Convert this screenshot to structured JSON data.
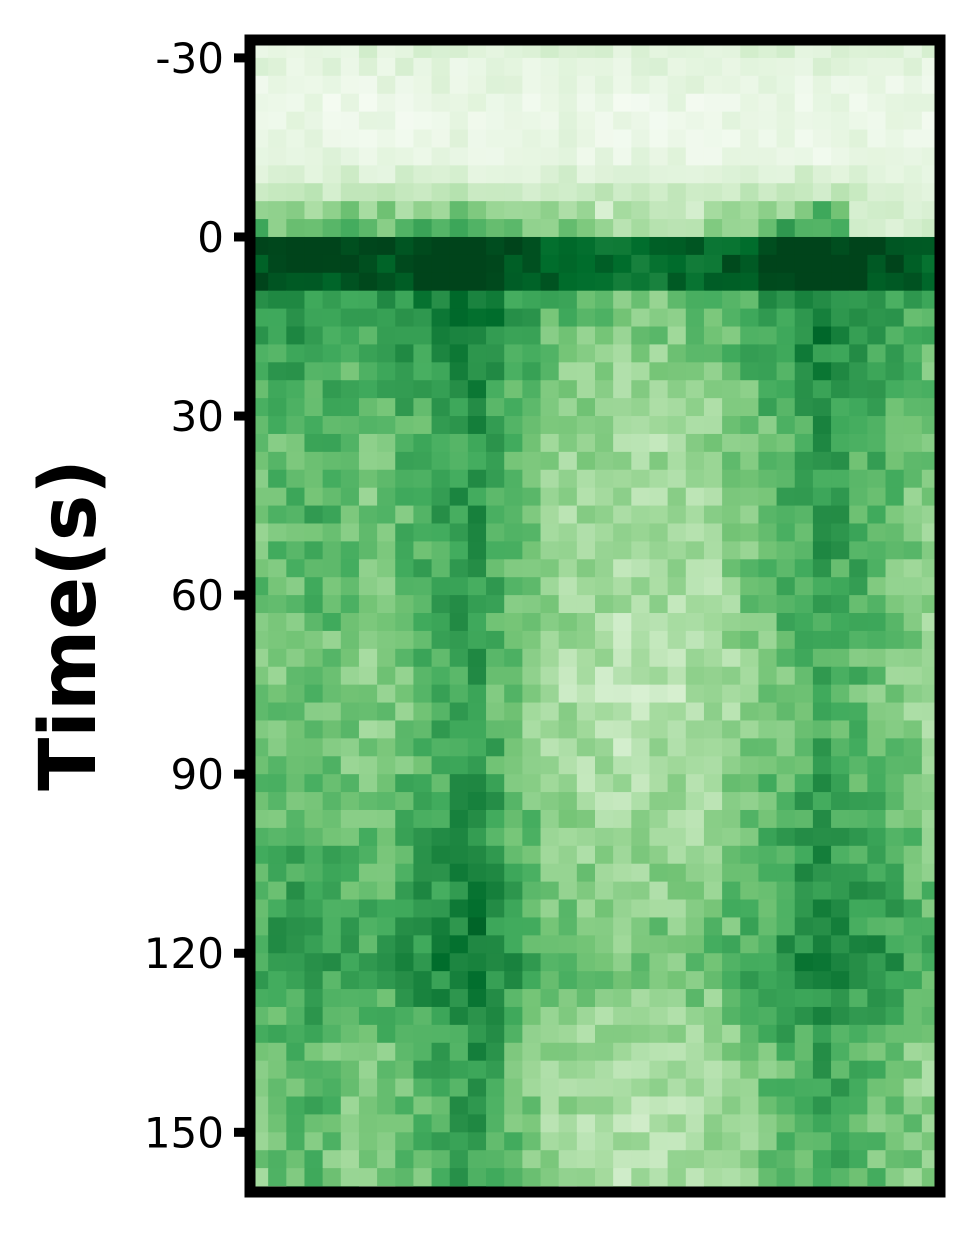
{
  "chart_data": {
    "type": "heatmap",
    "colormap": "Greens",
    "title": "",
    "xlabel": "",
    "ylabel": "Time(s)",
    "ylim": [
      -33,
      160
    ],
    "y_ticks": [
      -30,
      0,
      30,
      60,
      90,
      120,
      150
    ],
    "y_tick_labels": [
      "-30",
      "0",
      "30",
      "60",
      "90",
      "120",
      "150"
    ],
    "x_ticks_visible": false,
    "grid": false,
    "n_columns": 38,
    "row_step_s": 3,
    "row_start_s": -33,
    "columns_profile": [
      {
        "col": 0,
        "baseline": 0.55
      },
      {
        "col": 3,
        "baseline": 0.65
      },
      {
        "col": 6,
        "baseline": 0.5
      },
      {
        "col": 12,
        "baseline": 0.85
      },
      {
        "col": 16,
        "baseline": 0.4
      },
      {
        "col": 20,
        "baseline": 0.28
      },
      {
        "col": 25,
        "baseline": 0.35
      },
      {
        "col": 31,
        "baseline": 0.8
      },
      {
        "col": 37,
        "baseline": 0.45
      }
    ],
    "time_profile": [
      {
        "t": -33,
        "v": 0.15
      },
      {
        "t": -24,
        "v": 0.08
      },
      {
        "t": -15,
        "v": 0.1
      },
      {
        "t": -9,
        "v": 0.25
      },
      {
        "t": -3,
        "v": 0.5
      },
      {
        "t": 0,
        "v": 0.98
      },
      {
        "t": 6,
        "v": 0.95
      },
      {
        "t": 15,
        "v": 0.82
      },
      {
        "t": 30,
        "v": 0.6
      },
      {
        "t": 60,
        "v": 0.55
      },
      {
        "t": 75,
        "v": 0.42
      },
      {
        "t": 90,
        "v": 0.55
      },
      {
        "t": 105,
        "v": 0.7
      },
      {
        "t": 120,
        "v": 0.9
      },
      {
        "t": 135,
        "v": 0.55
      },
      {
        "t": 150,
        "v": 0.5
      },
      {
        "t": 160,
        "v": 0.45
      }
    ]
  }
}
